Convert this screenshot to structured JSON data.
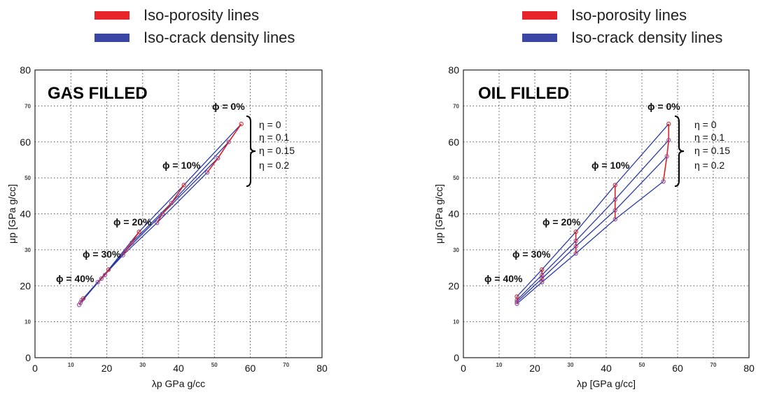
{
  "legend": {
    "items": [
      {
        "label": "Iso-porosity lines",
        "color": "#e8242b"
      },
      {
        "label": "Iso-crack density lines",
        "color": "#3b45a3"
      }
    ]
  },
  "colors": {
    "iso_porosity": "#e02020",
    "iso_crack": "#2b3aa8",
    "marker": "#c33030"
  },
  "chart_data": [
    {
      "type": "line",
      "title": "GAS FILLED",
      "xlabel": "λp GPa g/cc",
      "ylabel": "μp [GPa  g/cc]",
      "xlim": [
        0,
        80
      ],
      "ylim": [
        0,
        80
      ],
      "xticks": [
        "0",
        "10",
        "20",
        "30",
        "40",
        "50",
        "60",
        "70",
        "80"
      ],
      "yticks": [
        "0",
        "10",
        "20",
        "30",
        "40",
        "50",
        "60",
        "70",
        "80"
      ],
      "grid": true,
      "porosity_labels": [
        "ϕ = 0%",
        "ϕ = 10%",
        "ϕ = 20%",
        "ϕ = 30%",
        "ϕ = 40%"
      ],
      "eta_labels": [
        "η = 0",
        "η = 0.1",
        "η = 0.15",
        "η = 0.2"
      ],
      "series": [
        {
          "name": "η = 0",
          "x": [
            57.5,
            41.5,
            29,
            20.5,
            13.5
          ],
          "y": [
            65,
            48,
            35,
            24.5,
            16.5
          ]
        },
        {
          "name": "η = 0.1",
          "x": [
            54,
            38,
            27,
            19.5,
            13
          ],
          "y": [
            60,
            43,
            32,
            23,
            16
          ]
        },
        {
          "name": "η = 0.15",
          "x": [
            51,
            35.5,
            25.5,
            18.5,
            12.7
          ],
          "y": [
            55.5,
            40,
            30,
            22,
            15.3
          ]
        },
        {
          "name": "η = 0.2",
          "x": [
            48,
            34,
            24.5,
            17.5,
            12.3
          ],
          "y": [
            51.5,
            37.5,
            28.5,
            21,
            14.7
          ]
        }
      ]
    },
    {
      "type": "line",
      "title": "OIL FILLED",
      "xlabel": "λp [GPa g/cc]",
      "ylabel": "μp [GPa  g/cc]",
      "xlim": [
        0,
        80
      ],
      "ylim": [
        0,
        80
      ],
      "xticks": [
        "0",
        "10",
        "20",
        "30",
        "40",
        "50",
        "60",
        "70",
        "80"
      ],
      "yticks": [
        "0",
        "10",
        "20",
        "30",
        "40",
        "50",
        "60",
        "70",
        "80"
      ],
      "grid": true,
      "porosity_labels": [
        "ϕ = 0%",
        "ϕ = 10%",
        "ϕ = 20%",
        "ϕ = 30%",
        "ϕ = 40%"
      ],
      "eta_labels": [
        "η = 0",
        "η = 0.1",
        "η = 0.15",
        "η = 0.2"
      ],
      "series": [
        {
          "name": "η = 0",
          "x": [
            57.5,
            42.5,
            31.5,
            22,
            15
          ],
          "y": [
            65,
            48,
            35,
            24.5,
            17
          ]
        },
        {
          "name": "η = 0.1",
          "x": [
            57.5,
            42.5,
            31.5,
            22,
            15
          ],
          "y": [
            60.5,
            44,
            32.5,
            23,
            16
          ]
        },
        {
          "name": "η = 0.15",
          "x": [
            57,
            42.5,
            31.5,
            22,
            15
          ],
          "y": [
            56,
            41,
            31,
            22,
            15.5
          ]
        },
        {
          "name": "η = 0.2",
          "x": [
            56,
            42.5,
            31.5,
            22,
            15
          ],
          "y": [
            49,
            38.5,
            29,
            21,
            15
          ]
        }
      ]
    }
  ]
}
